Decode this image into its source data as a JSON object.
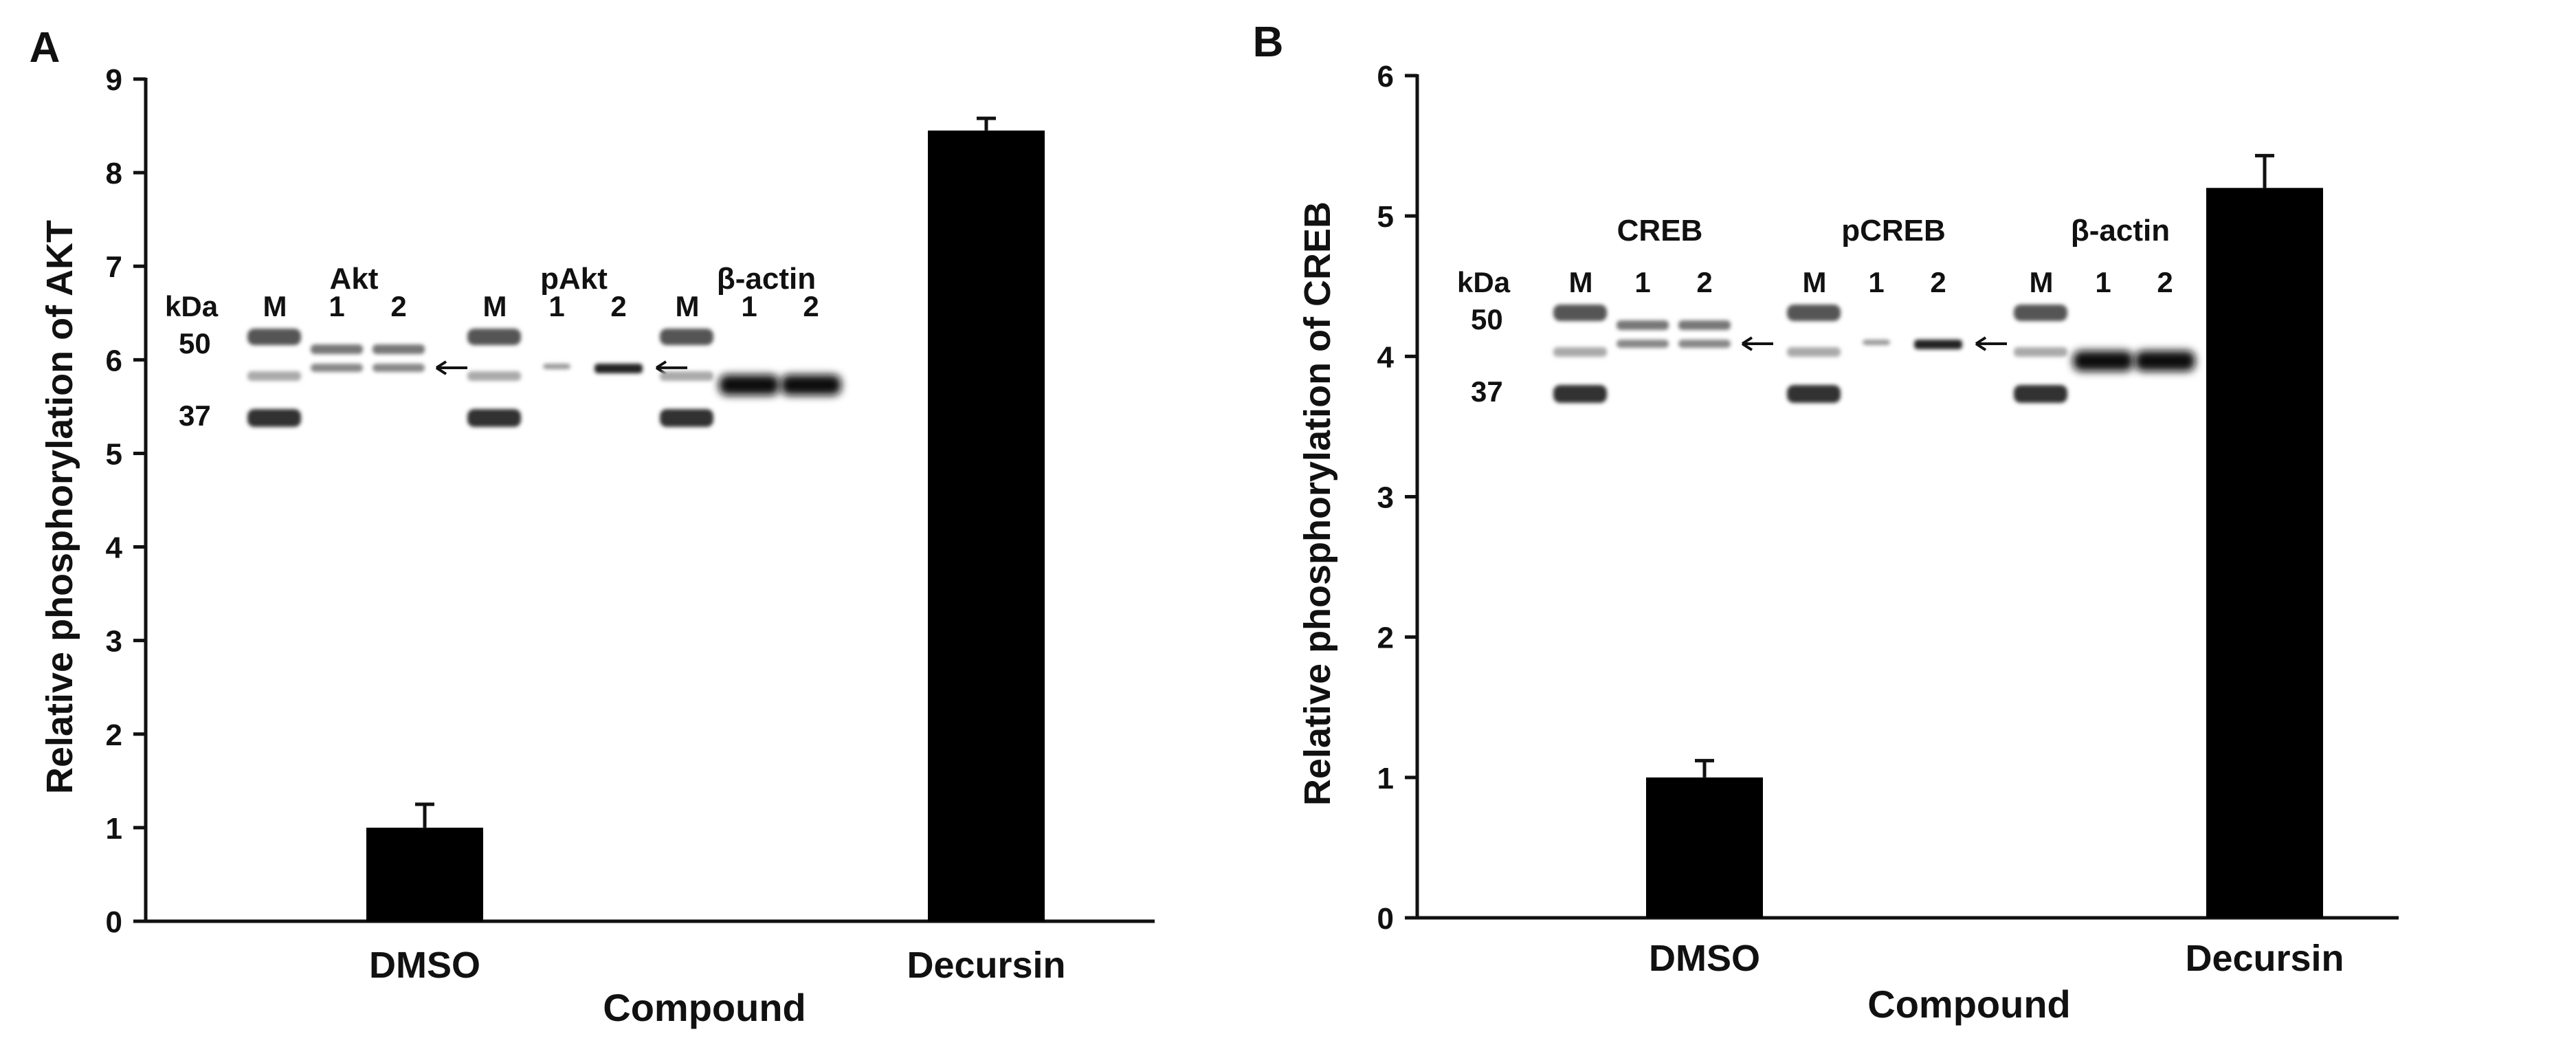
{
  "chart_data": [
    {
      "type": "bar",
      "panel_label": "A",
      "categories": [
        "DMSO",
        "Decursin"
      ],
      "values": [
        1.0,
        8.45
      ],
      "errors": [
        0.25,
        0.13
      ],
      "xlabel": "Compound",
      "ylabel": "Relative phosphorylation of AKT",
      "ylim": [
        0,
        9
      ],
      "yticks": [
        0,
        1,
        2,
        3,
        4,
        5,
        6,
        7,
        8,
        9
      ],
      "grid": false,
      "bar_color": "#000000",
      "blot": {
        "kda_header": "kDa",
        "kda_markers": [
          "50",
          "37"
        ],
        "groups": [
          {
            "name": "Akt",
            "lanes": [
              "M",
              "1",
              "2"
            ],
            "arrow": true
          },
          {
            "name": "pAkt",
            "lanes": [
              "M",
              "1",
              "2"
            ],
            "arrow": true
          },
          {
            "name": "β-actin",
            "lanes": [
              "M",
              "1",
              "2"
            ],
            "arrow": false
          }
        ]
      }
    },
    {
      "type": "bar",
      "panel_label": "B",
      "categories": [
        "DMSO",
        "Decursin"
      ],
      "values": [
        1.0,
        5.2
      ],
      "errors": [
        0.12,
        0.23
      ],
      "xlabel": "Compound",
      "ylabel": "Relative phosphorylation of CREB",
      "ylim": [
        0,
        6
      ],
      "yticks": [
        0,
        1,
        2,
        3,
        4,
        5,
        6
      ],
      "grid": false,
      "bar_color": "#000000",
      "blot": {
        "kda_header": "kDa",
        "kda_markers": [
          "50",
          "37"
        ],
        "groups": [
          {
            "name": "CREB",
            "lanes": [
              "M",
              "1",
              "2"
            ],
            "arrow": true
          },
          {
            "name": "pCREB",
            "lanes": [
              "M",
              "1",
              "2"
            ],
            "arrow": true
          },
          {
            "name": "β-actin",
            "lanes": [
              "M",
              "1",
              "2"
            ],
            "arrow": false
          }
        ]
      }
    }
  ]
}
